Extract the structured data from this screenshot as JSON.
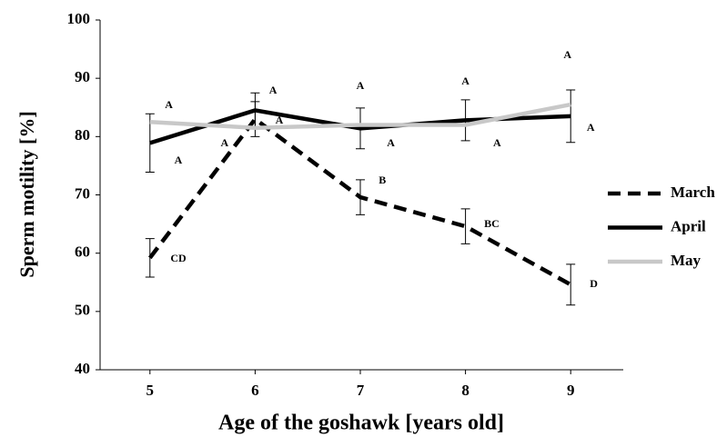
{
  "chart_data": {
    "type": "line",
    "xlabel": "Age of the goshawk [years old]",
    "ylabel": "Sperm motility [%]",
    "x": [
      5,
      6,
      7,
      8,
      9
    ],
    "series": [
      {
        "name": "March",
        "color": "#000000",
        "dash": true,
        "values": [
          59.2,
          83,
          69.6,
          64.6,
          54.6
        ],
        "errors": [
          3.3,
          3,
          3,
          3,
          3.5
        ]
      },
      {
        "name": "April",
        "color": "#000000",
        "dash": false,
        "values": [
          78.9,
          84.5,
          81.4,
          82.8,
          83.5
        ],
        "errors": [
          5,
          3,
          3.5,
          3.5,
          4.5
        ]
      },
      {
        "name": "May",
        "color": "#c8c8c8",
        "dash": false,
        "values": [
          82.5,
          81.5,
          82,
          82,
          85.5
        ]
      }
    ],
    "xlim": [
      4.5,
      9.5
    ],
    "xticks": [
      5,
      6,
      7,
      8,
      9
    ],
    "ylim": [
      40,
      100
    ],
    "yticks": [
      40,
      50,
      60,
      70,
      80,
      90,
      100
    ],
    "legend": "right",
    "annotations": [
      {
        "text": "A",
        "x": 5.18,
        "y": 85.3
      },
      {
        "text": "A",
        "x": 5.27,
        "y": 75.8
      },
      {
        "text": "CD",
        "x": 5.27,
        "y": 59
      },
      {
        "text": "A",
        "x": 6.17,
        "y": 87.8
      },
      {
        "text": "A",
        "x": 5.71,
        "y": 78.8
      },
      {
        "text": "A",
        "x": 6.23,
        "y": 82.7
      },
      {
        "text": "A",
        "x": 7.0,
        "y": 88.6
      },
      {
        "text": "A",
        "x": 7.29,
        "y": 78.8
      },
      {
        "text": "B",
        "x": 7.21,
        "y": 72.4
      },
      {
        "text": "A",
        "x": 8.0,
        "y": 89.4
      },
      {
        "text": "A",
        "x": 8.3,
        "y": 78.8
      },
      {
        "text": "BC",
        "x": 8.25,
        "y": 64.9
      },
      {
        "text": "A",
        "x": 8.97,
        "y": 93.9
      },
      {
        "text": "A",
        "x": 9.19,
        "y": 81.4
      },
      {
        "text": "D",
        "x": 9.22,
        "y": 54.6
      }
    ]
  }
}
